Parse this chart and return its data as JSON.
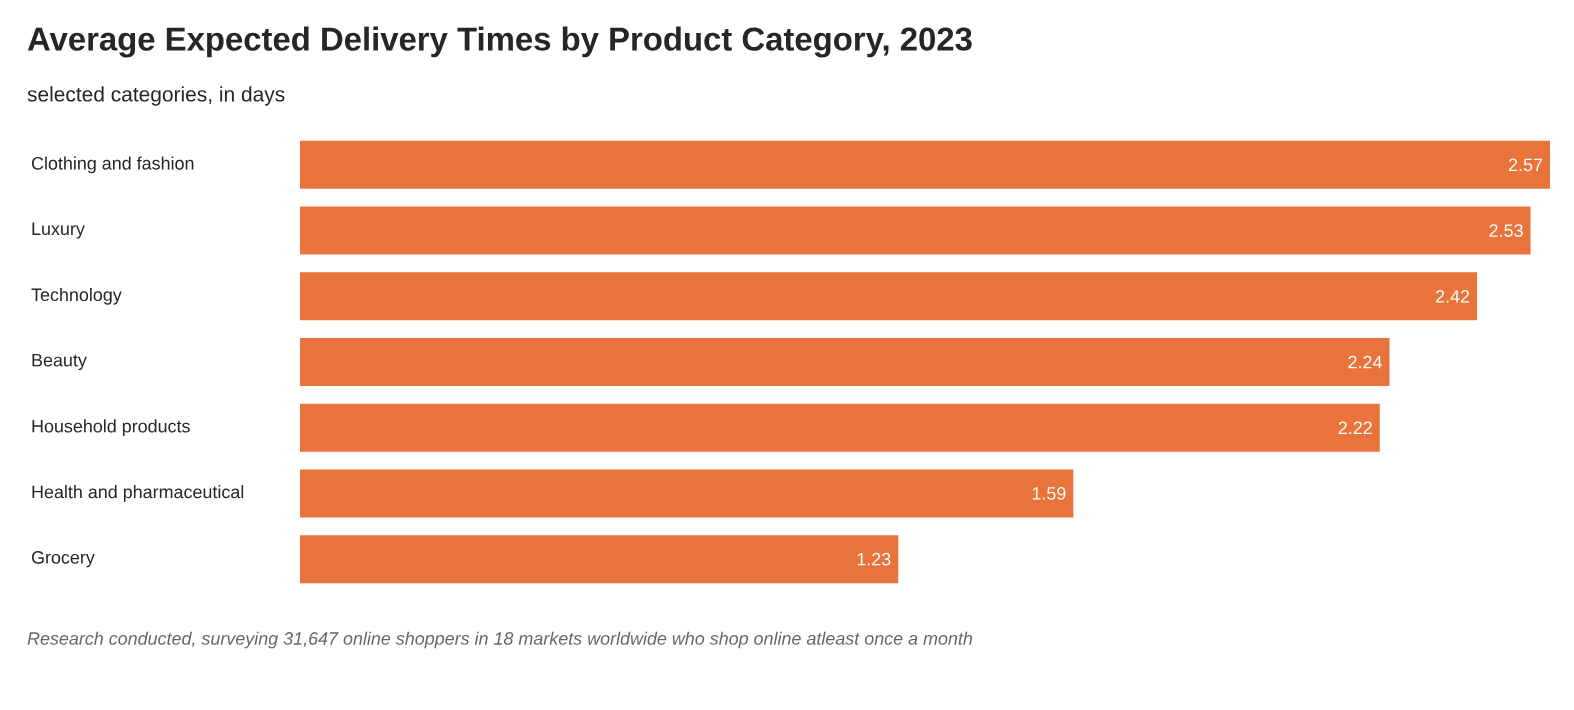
{
  "chart_data": {
    "type": "bar",
    "orientation": "horizontal",
    "title": "Average Expected Delivery Times by Product Category, 2023",
    "subtitle": "selected categories, in days",
    "categories": [
      "Clothing and fashion",
      "Luxury",
      "Technology",
      "Beauty",
      "Household products",
      "Health and pharmaceutical",
      "Grocery"
    ],
    "values": [
      2.57,
      2.53,
      2.42,
      2.24,
      2.22,
      1.59,
      1.23
    ],
    "color": "#e8743b",
    "data_labels": true,
    "annotations": [
      "Research conducted, surveying 31,647 online shoppers in 18 markets worldwide who shop online atleast once a month"
    ]
  }
}
